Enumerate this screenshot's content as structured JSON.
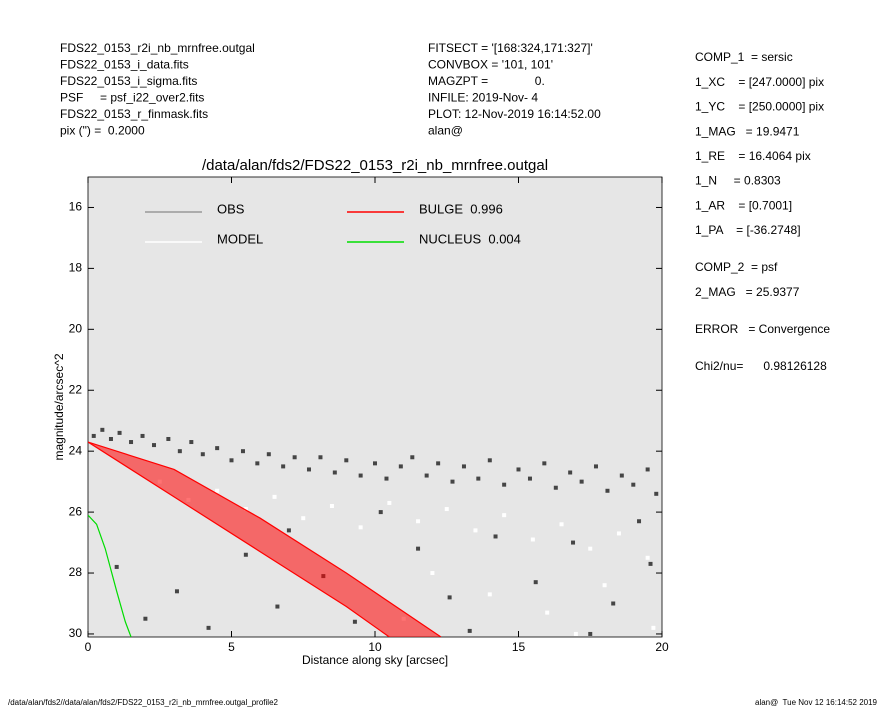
{
  "header_left": [
    "FDS22_0153_r2i_nb_mrnfree.outgal",
    "FDS22_0153_i_data.fits",
    "FDS22_0153_i_sigma.fits",
    "PSF     = psf_i22_over2.fits",
    "FDS22_0153_r_finmask.fits",
    "pix (\") =  0.2000"
  ],
  "header_mid": [
    "FITSECT = '[168:324,171:327]'",
    "CONVBOX = '101, 101'",
    "MAGZPT =              0.",
    "INFILE: 2019-Nov- 4",
    "PLOT: 12-Nov-2019 16:14:52.00",
    "alan@"
  ],
  "side_panel": [
    [
      "COMP_1  = sersic",
      "1_XC    = [247.0000] pix",
      "1_YC    = [250.0000] pix",
      "1_MAG   = 19.9471",
      "1_RE    = 16.4064 pix",
      "1_N     = 0.8303",
      "1_AR    = [0.7001]",
      "1_PA    = [-36.2748]"
    ],
    [
      "COMP_2  = psf",
      "2_MAG   = 25.9377"
    ],
    [
      "ERROR   = Convergence"
    ],
    [
      "Chi2/nu=      0.98126128"
    ]
  ],
  "footer": {
    "left": "/data/alan/fds2//data/alan/fds2/FDS22_0153_r2i_nb_mrnfree.outgal_profile2",
    "right": "alan@  Tue Nov 12 16:14:52 2019"
  },
  "chart_data": {
    "type": "scatter",
    "title": "/data/alan/fds2/FDS22_0153_r2i_nb_mrnfree.outgal",
    "x_label": "Distance along sky [arcsec]",
    "y_label": "magnitude/arcsec^2",
    "xlim": [
      0,
      20
    ],
    "ylim": [
      15,
      30.1
    ],
    "y_reversed": true,
    "xticks": [
      0,
      5,
      10,
      15,
      20
    ],
    "yticks": [
      16,
      18,
      20,
      22,
      24,
      26,
      28,
      30
    ],
    "background": "#e6e6e6",
    "series": [
      {
        "name": "OBS",
        "color": "#454545",
        "legend_color": "#999999",
        "mode": "points",
        "x": [
          0.2,
          0.5,
          0.8,
          1.1,
          1.5,
          1.9,
          2.3,
          2.8,
          3.2,
          3.6,
          4.0,
          4.5,
          5.0,
          5.4,
          5.9,
          6.3,
          6.8,
          7.2,
          7.7,
          8.1,
          8.6,
          9.0,
          9.5,
          10.0,
          10.4,
          10.9,
          11.3,
          11.8,
          12.2,
          12.7,
          13.1,
          13.6,
          14.0,
          14.5,
          15.0,
          15.4,
          15.9,
          16.3,
          16.8,
          17.2,
          17.7,
          18.1,
          18.6,
          19.0,
          19.5,
          19.8,
          1.0,
          2.0,
          3.1,
          4.2,
          5.5,
          6.6,
          8.2,
          9.3,
          11.5,
          12.6,
          14.2,
          15.6,
          16.9,
          18.3,
          19.6,
          13.3,
          17.5,
          7.0,
          10.2,
          19.2
        ],
        "values": [
          23.5,
          23.3,
          23.6,
          23.4,
          23.7,
          23.5,
          23.8,
          23.6,
          24.0,
          23.7,
          24.1,
          23.9,
          24.3,
          24.0,
          24.4,
          24.1,
          24.5,
          24.2,
          24.6,
          24.2,
          24.7,
          24.3,
          24.8,
          24.4,
          24.9,
          24.5,
          24.2,
          24.8,
          24.4,
          25.0,
          24.5,
          24.9,
          24.3,
          25.1,
          24.6,
          24.9,
          24.4,
          25.2,
          24.7,
          25.0,
          24.5,
          25.3,
          24.8,
          25.1,
          24.6,
          25.4,
          27.8,
          29.5,
          28.6,
          29.8,
          27.4,
          29.1,
          28.1,
          29.6,
          27.2,
          28.8,
          26.8,
          28.3,
          27.0,
          29.0,
          27.7,
          29.9,
          30.0,
          26.6,
          26.0,
          26.3
        ]
      },
      {
        "name": "MODEL",
        "color": "#ffffff",
        "legend_color": "#ffffff",
        "mode": "points",
        "x": [
          2.5,
          3.5,
          4.5,
          5.5,
          6.5,
          7.5,
          8.5,
          9.5,
          10.5,
          11.5,
          12.5,
          13.5,
          14.5,
          15.5,
          16.5,
          17.5,
          18.5,
          19.5,
          12.0,
          14.0,
          16.0,
          18.0,
          19.7,
          11.0,
          17.0
        ],
        "values": [
          25.0,
          25.6,
          25.3,
          25.9,
          25.5,
          26.2,
          25.8,
          26.5,
          25.7,
          26.3,
          25.9,
          26.6,
          26.1,
          26.9,
          26.4,
          27.2,
          26.7,
          27.5,
          28.0,
          28.7,
          29.3,
          28.4,
          29.8,
          29.5,
          30.0
        ]
      },
      {
        "name": "BULGE  0.996",
        "color": "#ff0000",
        "legend_color": "#ff0000",
        "mode": "band",
        "x": [
          0,
          3,
          6,
          9,
          12.3
        ],
        "values": [
          23.7,
          24.6,
          26.2,
          28.0,
          30.1
        ],
        "lower_x": [
          0,
          3,
          6,
          9,
          10.5
        ],
        "lower": [
          23.7,
          25.5,
          27.3,
          29.1,
          30.1
        ]
      },
      {
        "name": "NUCLEUS  0.004",
        "color": "#00dd00",
        "legend_color": "#00dd00",
        "mode": "line",
        "x": [
          0,
          0.3,
          0.6,
          1.0,
          1.3,
          1.5
        ],
        "values": [
          26.1,
          26.4,
          27.2,
          28.6,
          29.6,
          30.1
        ]
      }
    ]
  }
}
